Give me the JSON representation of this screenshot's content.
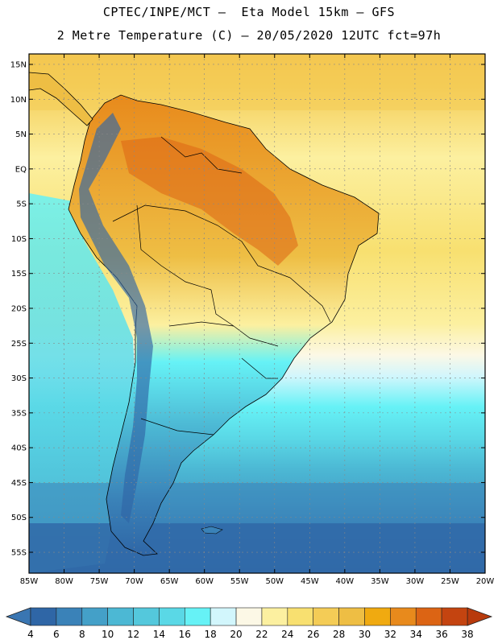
{
  "title": {
    "line1": "CPTEC/INPE/MCT –  Eta Model 15km – GFS",
    "line2": "2 Metre Temperature (C) – 20/05/2020 12UTC fct=97h"
  },
  "map": {
    "lon_range": [
      -85,
      -20
    ],
    "lat_range": [
      -58,
      16.5
    ],
    "lat_labels": [
      {
        "lat": 15,
        "text": "15N"
      },
      {
        "lat": 10,
        "text": "10N"
      },
      {
        "lat": 5,
        "text": "5N"
      },
      {
        "lat": 0,
        "text": "EQ"
      },
      {
        "lat": -5,
        "text": "5S"
      },
      {
        "lat": -10,
        "text": "10S"
      },
      {
        "lat": -15,
        "text": "15S"
      },
      {
        "lat": -20,
        "text": "20S"
      },
      {
        "lat": -25,
        "text": "25S"
      },
      {
        "lat": -30,
        "text": "30S"
      },
      {
        "lat": -35,
        "text": "35S"
      },
      {
        "lat": -40,
        "text": "40S"
      },
      {
        "lat": -45,
        "text": "45S"
      },
      {
        "lat": -50,
        "text": "50S"
      },
      {
        "lat": -55,
        "text": "55S"
      }
    ],
    "lon_labels": [
      {
        "lon": -85,
        "text": "85W"
      },
      {
        "lon": -80,
        "text": "80W"
      },
      {
        "lon": -75,
        "text": "75W"
      },
      {
        "lon": -70,
        "text": "70W"
      },
      {
        "lon": -65,
        "text": "65W"
      },
      {
        "lon": -60,
        "text": "60W"
      },
      {
        "lon": -55,
        "text": "55W"
      },
      {
        "lon": -50,
        "text": "50W"
      },
      {
        "lon": -45,
        "text": "45W"
      },
      {
        "lon": -40,
        "text": "40W"
      },
      {
        "lon": -35,
        "text": "35W"
      },
      {
        "lon": -30,
        "text": "30W"
      },
      {
        "lon": -25,
        "text": "25W"
      },
      {
        "lon": -20,
        "text": "20W"
      }
    ]
  },
  "colorbar": {
    "labels": [
      "4",
      "6",
      "8",
      "10",
      "12",
      "14",
      "16",
      "18",
      "20",
      "22",
      "24",
      "26",
      "28",
      "30",
      "32",
      "34",
      "36",
      "38"
    ],
    "low_color": "#3a76b2",
    "high_color": "#b83a0c",
    "colors": [
      "#2f66a6",
      "#3a82b8",
      "#44a0c8",
      "#4cb8d4",
      "#54c8dc",
      "#5ad8e6",
      "#66f2f6",
      "#d2f6fc",
      "#fcf8e6",
      "#fcf0a0",
      "#f8e070",
      "#f4cc56",
      "#eebe44",
      "#f0aa10",
      "#e88a1c",
      "#dc6414",
      "#c44410"
    ]
  }
}
